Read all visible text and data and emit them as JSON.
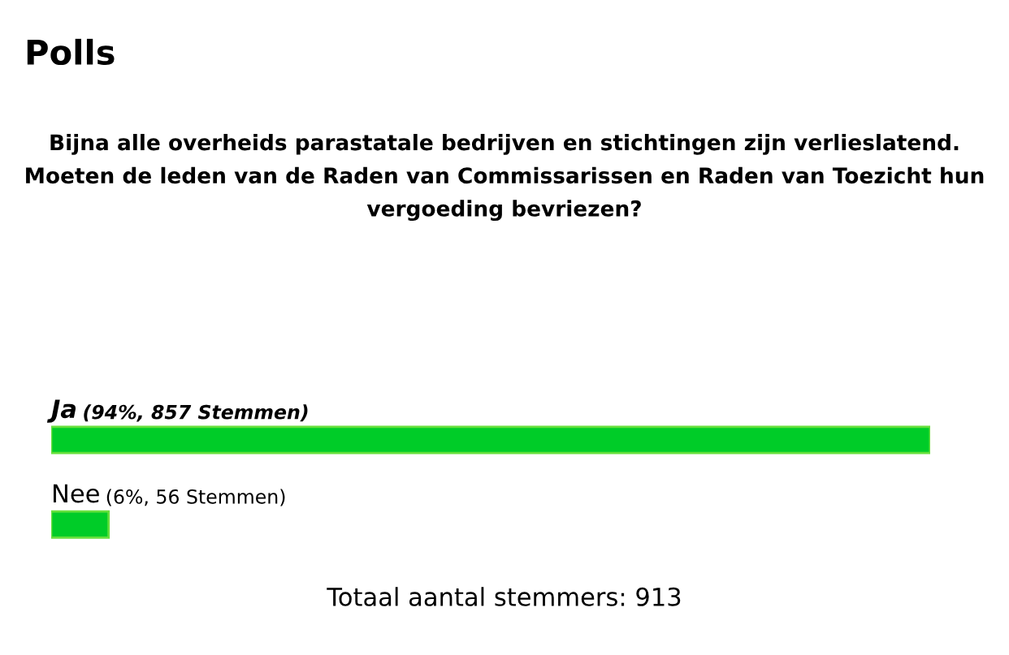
{
  "chart_data": {
    "type": "bar",
    "orientation": "horizontal",
    "title": "Polls",
    "subtitle": "Bijna alle overheids parastatale bedrijven en stichtingen zijn verlieslatend. Moeten de leden van de Raden van Commissarissen en Raden van Toezicht hun vergoeding bevriezen?",
    "categories": [
      "Ja",
      "Nee"
    ],
    "values": [
      857,
      56
    ],
    "value_labels": [
      "(94%, 857 Stemmen)",
      "(6%, 56 Stemmen)"
    ],
    "color": "#00cc28",
    "annotations": [
      "Totaal aantal stemmers: 913"
    ]
  }
}
